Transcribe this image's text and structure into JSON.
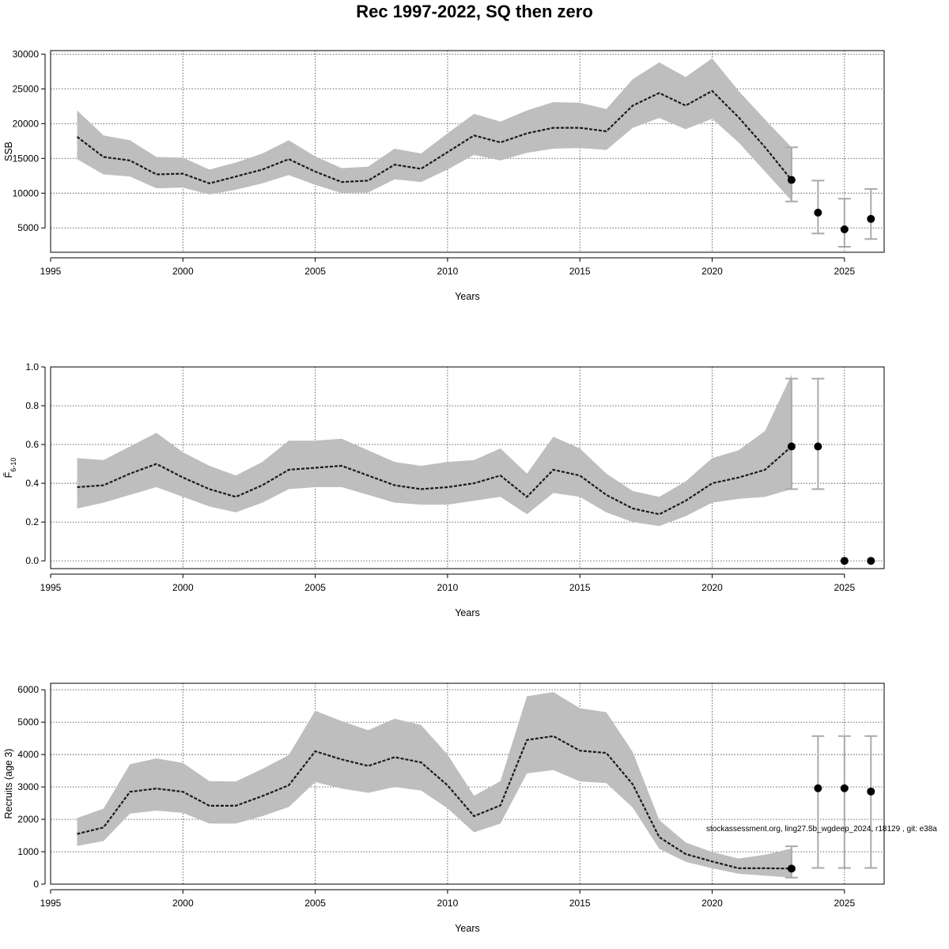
{
  "title": "Rec 1997-2022, SQ then zero",
  "watermark": "stockassessment.org, ling27.5b_wgdeep_2024, r18129 , git: e38a",
  "x_ticks": [
    "1995",
    "2000",
    "2005",
    "2010",
    "2015",
    "2020",
    "2025"
  ],
  "chart_data": [
    {
      "type": "line",
      "xlabel": "Years",
      "ylabel": "SSB",
      "xlim": [
        1995,
        2026.5
      ],
      "ylim": [
        1500,
        30500
      ],
      "y_ticks": [
        5000,
        10000,
        15000,
        20000,
        25000,
        30000
      ],
      "y_tick_labels": [
        "5000",
        "10000",
        "15000",
        "20000",
        "25000",
        "30000"
      ],
      "grid": true,
      "series": [
        {
          "x": [
            1996,
            1997,
            1998,
            1999,
            2000,
            2001,
            2002,
            2003,
            2004,
            2005,
            2006,
            2007,
            2008,
            2009,
            2010,
            2011,
            2012,
            2013,
            2014,
            2015,
            2016,
            2017,
            2018,
            2019,
            2020,
            2021,
            2022,
            2023
          ],
          "median": [
            18100,
            15200,
            14700,
            12700,
            12800,
            11400,
            12400,
            13400,
            14900,
            13100,
            11600,
            11800,
            14100,
            13500,
            15900,
            18300,
            17300,
            18600,
            19400,
            19400,
            18900,
            22600,
            24400,
            22600,
            24700,
            20900,
            16600,
            11900
          ],
          "lower": [
            14900,
            12700,
            12400,
            10700,
            10800,
            9800,
            10500,
            11400,
            12600,
            11200,
            10000,
            10100,
            12000,
            11600,
            13400,
            15500,
            14700,
            15800,
            16400,
            16500,
            16200,
            19400,
            20800,
            19200,
            20700,
            17300,
            13100,
            8900
          ],
          "upper": [
            21900,
            18300,
            17600,
            15200,
            15100,
            13400,
            14400,
            15700,
            17600,
            15300,
            13600,
            13800,
            16400,
            15700,
            18600,
            21400,
            20300,
            21900,
            23100,
            23000,
            22100,
            26400,
            28800,
            26700,
            29400,
            24700,
            20600,
            16600
          ]
        }
      ],
      "forecast": {
        "x": [
          2023,
          2024,
          2025,
          2026
        ],
        "median": [
          11900,
          7200,
          4800,
          6300
        ],
        "lower": [
          8800,
          4200,
          2300,
          3400
        ],
        "upper": [
          16600,
          11800,
          9200,
          10600
        ]
      }
    },
    {
      "type": "line",
      "xlabel": "Years",
      "ylabel": "F̄6-10",
      "ylabel_main": "F̄",
      "ylabel_sub": "6-10",
      "xlim": [
        1995,
        2026.5
      ],
      "ylim": [
        -0.04,
        1.0
      ],
      "y_ticks": [
        0.0,
        0.2,
        0.4,
        0.6,
        0.8,
        1.0
      ],
      "y_tick_labels": [
        "0.0",
        "0.2",
        "0.4",
        "0.6",
        "0.8",
        "1.0"
      ],
      "grid": true,
      "series": [
        {
          "x": [
            1996,
            1997,
            1998,
            1999,
            2000,
            2001,
            2002,
            2003,
            2004,
            2005,
            2006,
            2007,
            2008,
            2009,
            2010,
            2011,
            2012,
            2013,
            2014,
            2015,
            2016,
            2017,
            2018,
            2019,
            2020,
            2021,
            2022,
            2023
          ],
          "median": [
            0.38,
            0.39,
            0.45,
            0.5,
            0.43,
            0.37,
            0.33,
            0.39,
            0.47,
            0.48,
            0.49,
            0.44,
            0.39,
            0.37,
            0.38,
            0.4,
            0.44,
            0.33,
            0.47,
            0.44,
            0.34,
            0.27,
            0.24,
            0.31,
            0.4,
            0.43,
            0.47,
            0.59
          ],
          "lower": [
            0.27,
            0.3,
            0.34,
            0.38,
            0.33,
            0.28,
            0.25,
            0.3,
            0.37,
            0.38,
            0.38,
            0.34,
            0.3,
            0.29,
            0.29,
            0.31,
            0.33,
            0.24,
            0.35,
            0.33,
            0.25,
            0.2,
            0.18,
            0.23,
            0.3,
            0.32,
            0.33,
            0.37
          ],
          "upper": [
            0.53,
            0.52,
            0.59,
            0.66,
            0.56,
            0.49,
            0.44,
            0.51,
            0.62,
            0.62,
            0.63,
            0.57,
            0.51,
            0.49,
            0.51,
            0.52,
            0.58,
            0.45,
            0.64,
            0.58,
            0.45,
            0.36,
            0.33,
            0.41,
            0.53,
            0.57,
            0.67,
            0.96
          ]
        }
      ],
      "forecast": {
        "x": [
          2023,
          2024,
          2025,
          2026
        ],
        "median": [
          0.59,
          0.59,
          0.0,
          0.0
        ],
        "lower": [
          0.37,
          0.37,
          0.0,
          0.0
        ],
        "upper": [
          0.94,
          0.94,
          0.0,
          0.0
        ]
      }
    },
    {
      "type": "line",
      "xlabel": "Years",
      "ylabel": "Recruits (age 3)",
      "xlim": [
        1995,
        2026.5
      ],
      "ylim": [
        0,
        6200
      ],
      "y_ticks": [
        0,
        1000,
        2000,
        3000,
        4000,
        5000,
        6000
      ],
      "y_tick_labels": [
        "0",
        "1000",
        "2000",
        "3000",
        "4000",
        "5000",
        "6000"
      ],
      "grid": true,
      "series": [
        {
          "x": [
            1996,
            1997,
            1998,
            1999,
            2000,
            2001,
            2002,
            2003,
            2004,
            2005,
            2006,
            2007,
            2008,
            2009,
            2010,
            2011,
            2012,
            2013,
            2014,
            2015,
            2016,
            2017,
            2018,
            2019,
            2020,
            2021,
            2022,
            2023
          ],
          "median": [
            1550,
            1750,
            2850,
            2950,
            2850,
            2420,
            2420,
            2720,
            3050,
            4100,
            3850,
            3650,
            3920,
            3760,
            3050,
            2100,
            2430,
            4450,
            4570,
            4120,
            4050,
            3080,
            1450,
            930,
            700,
            490,
            490,
            480
          ],
          "lower": [
            1180,
            1330,
            2180,
            2270,
            2200,
            1870,
            1870,
            2100,
            2380,
            3150,
            2950,
            2820,
            3000,
            2890,
            2340,
            1600,
            1870,
            3420,
            3520,
            3170,
            3120,
            2360,
            1090,
            690,
            490,
            320,
            260,
            200
          ],
          "upper": [
            2040,
            2330,
            3700,
            3880,
            3740,
            3180,
            3170,
            3560,
            3980,
            5350,
            5030,
            4750,
            5110,
            4910,
            4000,
            2730,
            3180,
            5800,
            5930,
            5430,
            5310,
            4080,
            1980,
            1290,
            990,
            790,
            910,
            1100
          ]
        }
      ],
      "forecast": {
        "x": [
          2023,
          2024,
          2025,
          2026
        ],
        "median": [
          480,
          2960,
          2960,
          2860
        ],
        "lower": [
          200,
          500,
          500,
          500
        ],
        "upper": [
          1170,
          4570,
          4570,
          4570
        ]
      }
    }
  ]
}
